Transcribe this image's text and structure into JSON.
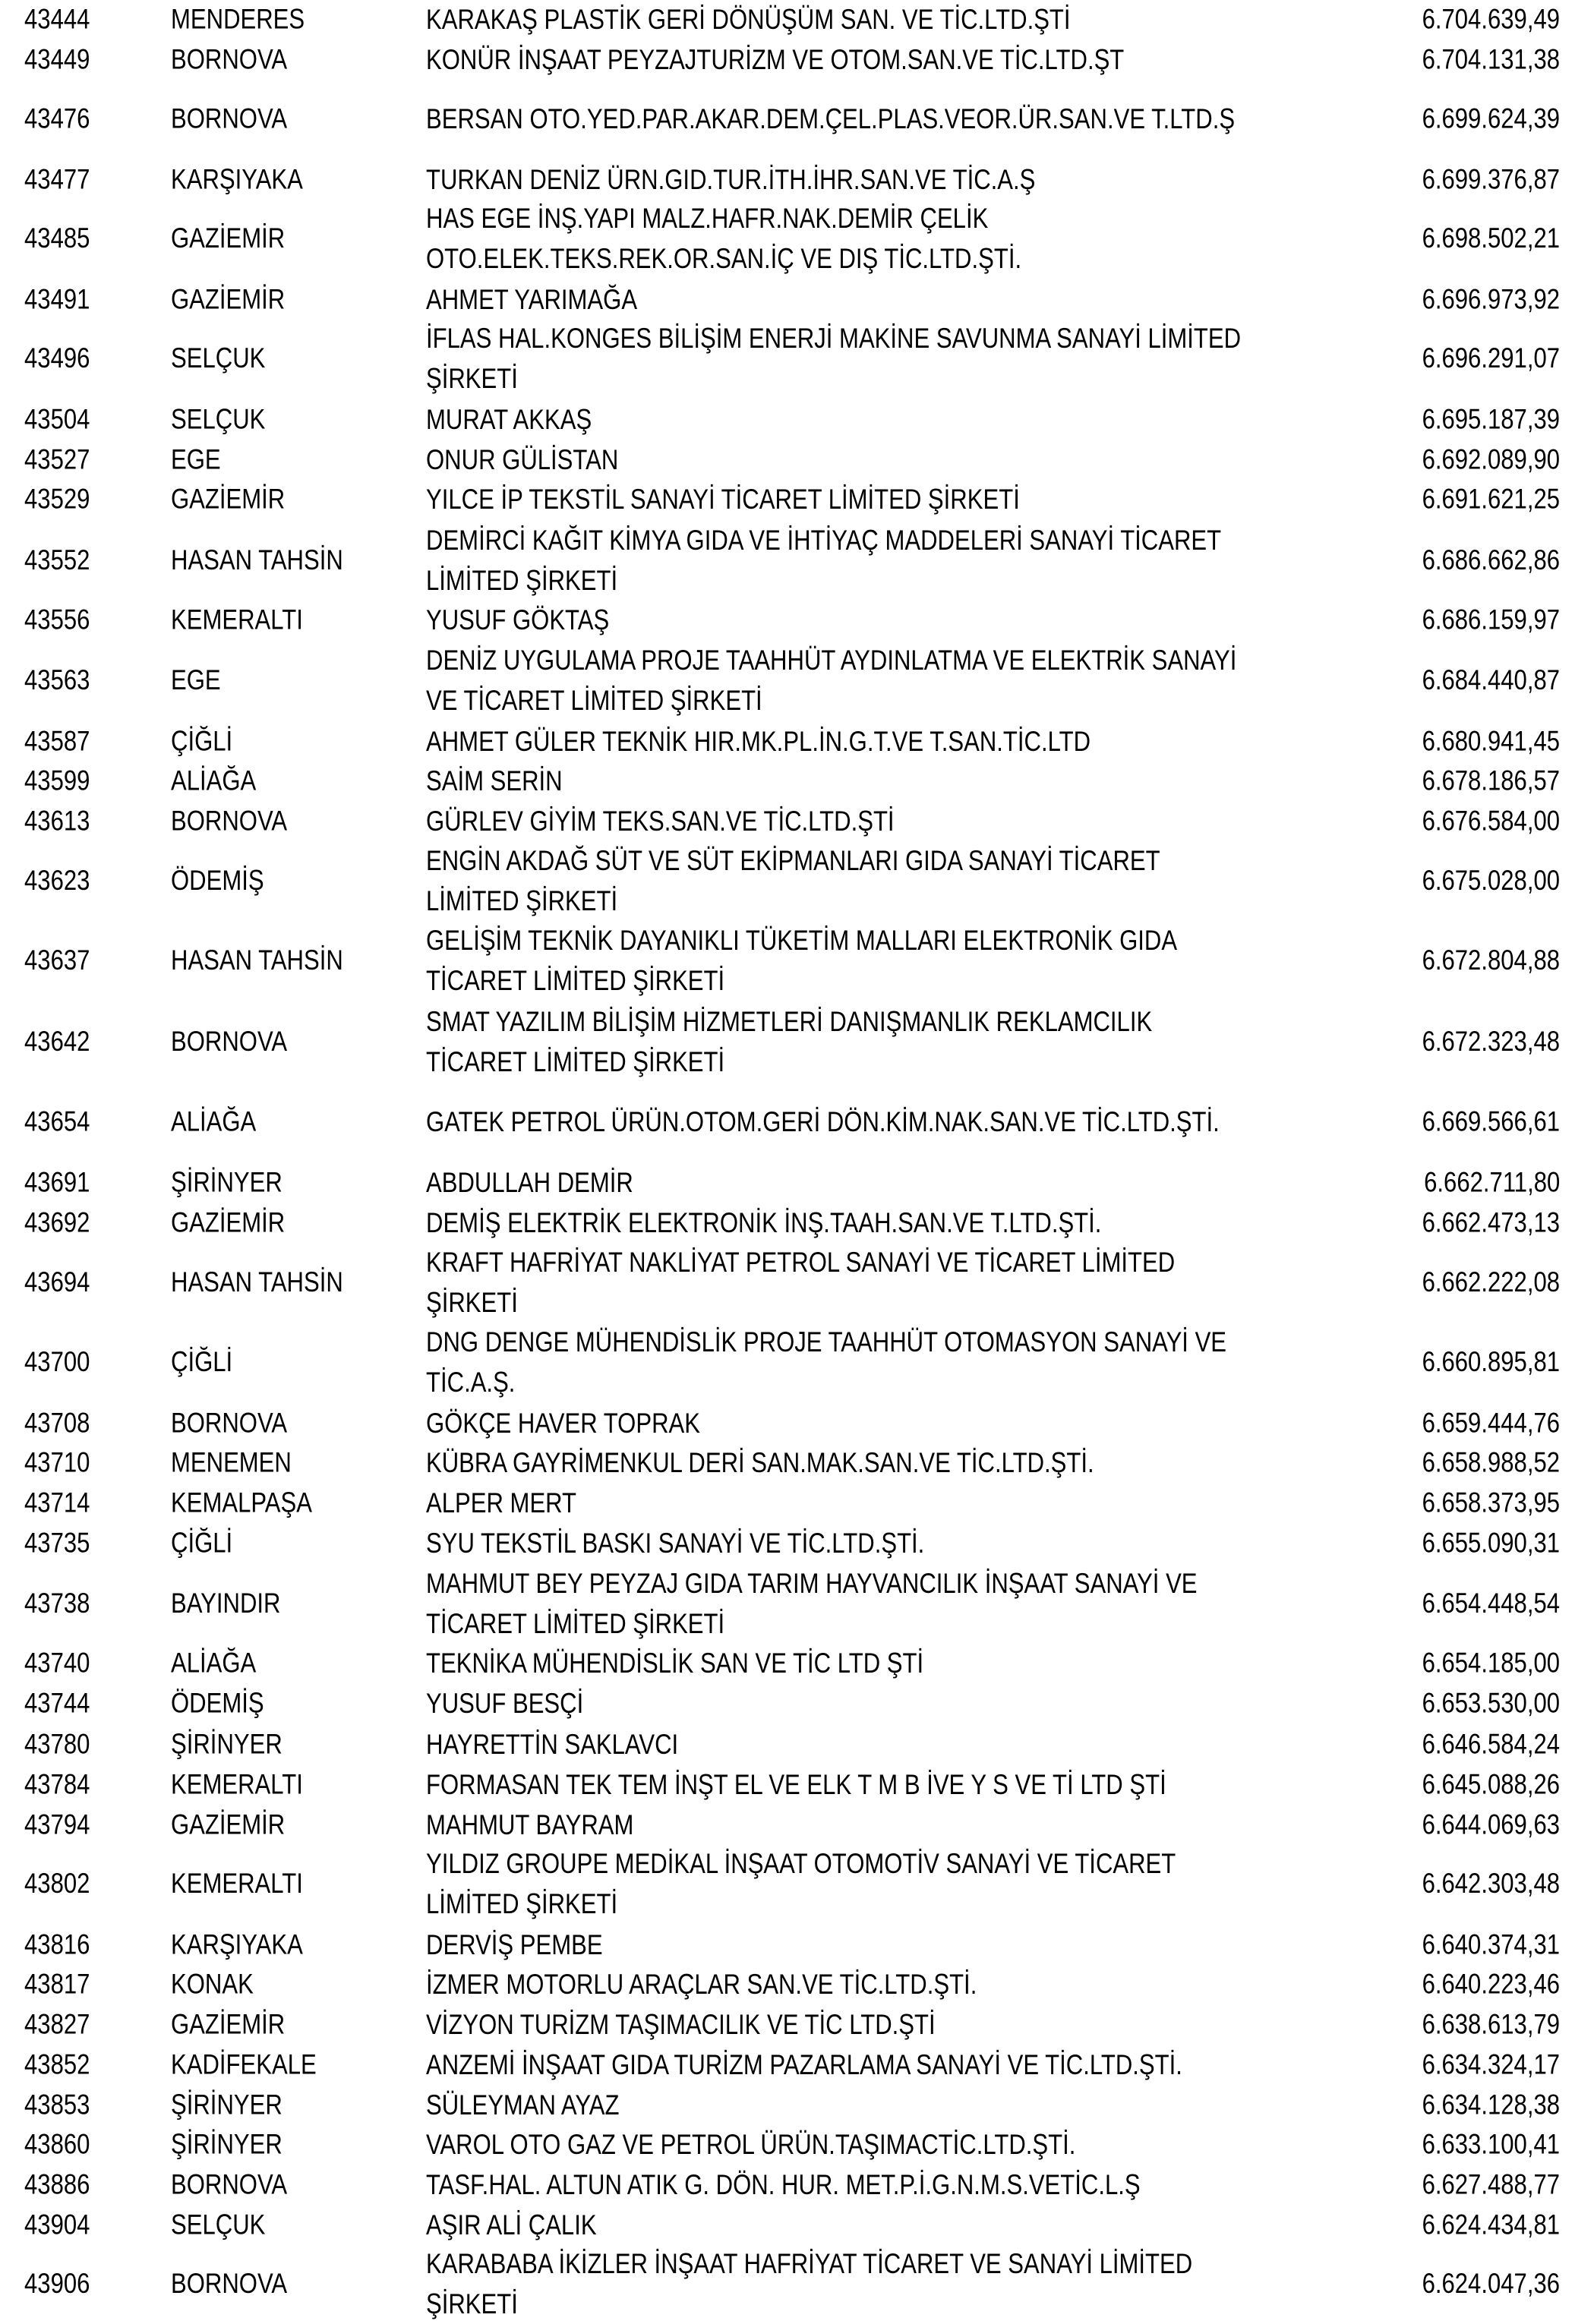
{
  "table": {
    "rows": [
      {
        "id": "43444",
        "district": "MENDERES",
        "name": [
          "KARAKAŞ PLASTİK GERİ DÖNÜŞÜM SAN. VE TİC.LTD.ŞTİ"
        ],
        "amount": "6.704.639,49"
      },
      {
        "id": "43449",
        "district": "BORNOVA",
        "name": [
          "KONÜR İNŞAAT PEYZAJTURİZM VE OTOM.SAN.VE TİC.LTD.ŞT"
        ],
        "amount": "6.704.131,38"
      },
      {
        "id": "43476",
        "district": "BORNOVA",
        "name": [
          "BERSAN OTO.YED.PAR.AKAR.DEM.ÇEL.PLAS.VEOR.ÜR.SAN.VE T.LTD.Ş"
        ],
        "amount": "6.699.624,39"
      },
      {
        "id": "43477",
        "district": "KARŞIYAKA",
        "name": [
          "TURKAN DENİZ ÜRN.GID.TUR.İTH.İHR.SAN.VE TİC.A.Ş"
        ],
        "amount": "6.699.376,87"
      },
      {
        "id": "43485",
        "district": "GAZİEMİR",
        "name": [
          "HAS EGE İNŞ.YAPI MALZ.HAFR.NAK.DEMİR ÇELİK",
          "OTO.ELEK.TEKS.REK.OR.SAN.İÇ VE DIŞ TİC.LTD.ŞTİ."
        ],
        "amount": "6.698.502,21"
      },
      {
        "id": "43491",
        "district": "GAZİEMİR",
        "name": [
          "AHMET YARIMAĞA"
        ],
        "amount": "6.696.973,92"
      },
      {
        "id": "43496",
        "district": "SELÇUK",
        "name": [
          "İFLAS HAL.KONGES BİLİŞİM ENERJİ MAKİNE SAVUNMA SANAYİ LİMİTED",
          "ŞİRKETİ"
        ],
        "amount": "6.696.291,07"
      },
      {
        "id": "43504",
        "district": "SELÇUK",
        "name": [
          "MURAT AKKAŞ"
        ],
        "amount": "6.695.187,39"
      },
      {
        "id": "43527",
        "district": "EGE",
        "name": [
          "ONUR GÜLİSTAN"
        ],
        "amount": "6.692.089,90"
      },
      {
        "id": "43529",
        "district": "GAZİEMİR",
        "name": [
          "YILCE İP TEKSTİL SANAYİ TİCARET LİMİTED ŞİRKETİ"
        ],
        "amount": "6.691.621,25"
      },
      {
        "id": "43552",
        "district": "HASAN TAHSİN",
        "name": [
          "DEMİRCİ KAĞIT KİMYA GIDA VE İHTİYAÇ MADDELERİ SANAYİ TİCARET",
          "LİMİTED ŞİRKETİ"
        ],
        "amount": "6.686.662,86"
      },
      {
        "id": "43556",
        "district": "KEMERALTI",
        "name": [
          "YUSUF GÖKTAŞ"
        ],
        "amount": "6.686.159,97"
      },
      {
        "id": "43563",
        "district": "EGE",
        "name": [
          "DENİZ UYGULAMA PROJE TAAHHÜT AYDINLATMA VE ELEKTRİK SANAYİ",
          "VE TİCARET LİMİTED ŞİRKETİ"
        ],
        "amount": "6.684.440,87"
      },
      {
        "id": "43587",
        "district": "ÇİĞLİ",
        "name": [
          "AHMET GÜLER TEKNİK HIR.MK.PL.İN.G.T.VE T.SAN.TİC.LTD"
        ],
        "amount": "6.680.941,45"
      },
      {
        "id": "43599",
        "district": "ALİAĞA",
        "name": [
          "SAİM SERİN"
        ],
        "amount": "6.678.186,57"
      },
      {
        "id": "43613",
        "district": "BORNOVA",
        "name": [
          "GÜRLEV GİYİM TEKS.SAN.VE TİC.LTD.ŞTİ"
        ],
        "amount": "6.676.584,00"
      },
      {
        "id": "43623",
        "district": "ÖDEMİŞ",
        "name": [
          "ENGİN AKDAĞ SÜT VE SÜT EKİPMANLARI GIDA SANAYİ TİCARET",
          "LİMİTED ŞİRKETİ"
        ],
        "amount": "6.675.028,00"
      },
      {
        "id": "43637",
        "district": "HASAN TAHSİN",
        "name": [
          "GELİŞİM TEKNİK DAYANIKLI TÜKETİM MALLARI ELEKTRONİK GIDA",
          "TİCARET LİMİTED ŞİRKETİ"
        ],
        "amount": "6.672.804,88"
      },
      {
        "id": "43642",
        "district": "BORNOVA",
        "name": [
          "SMAT YAZILIM BİLİŞİM HİZMETLERİ DANIŞMANLIK REKLAMCILIK",
          "TİCARET LİMİTED ŞİRKETİ"
        ],
        "amount": "6.672.323,48"
      },
      {
        "id": "43654",
        "district": "ALİAĞA",
        "name": [
          "GATEK PETROL ÜRÜN.OTOM.GERİ DÖN.KİM.NAK.SAN.VE TİC.LTD.ŞTİ."
        ],
        "amount": "6.669.566,61"
      },
      {
        "id": "43691",
        "district": "ŞİRİNYER",
        "name": [
          "ABDULLAH DEMİR"
        ],
        "amount": "6.662.711,80"
      },
      {
        "id": "43692",
        "district": "GAZİEMİR",
        "name": [
          "DEMİŞ ELEKTRİK ELEKTRONİK İNŞ.TAAH.SAN.VE T.LTD.ŞTİ."
        ],
        "amount": "6.662.473,13"
      },
      {
        "id": "43694",
        "district": "HASAN TAHSİN",
        "name": [
          "KRAFT HAFRİYAT NAKLİYAT PETROL SANAYİ VE TİCARET LİMİTED",
          "ŞİRKETİ"
        ],
        "amount": "6.662.222,08"
      },
      {
        "id": "43700",
        "district": "ÇİĞLİ",
        "name": [
          "DNG DENGE MÜHENDİSLİK PROJE TAAHHÜT OTOMASYON SANAYİ VE",
          "TİC.A.Ş."
        ],
        "amount": "6.660.895,81"
      },
      {
        "id": "43708",
        "district": "BORNOVA",
        "name": [
          "GÖKÇE HAVER TOPRAK"
        ],
        "amount": "6.659.444,76"
      },
      {
        "id": "43710",
        "district": "MENEMEN",
        "name": [
          "KÜBRA GAYRİMENKUL DERİ SAN.MAK.SAN.VE TİC.LTD.ŞTİ."
        ],
        "amount": "6.658.988,52"
      },
      {
        "id": "43714",
        "district": "KEMALPAŞA",
        "name": [
          "ALPER MERT"
        ],
        "amount": "6.658.373,95"
      },
      {
        "id": "43735",
        "district": "ÇİĞLİ",
        "name": [
          "SYU TEKSTİL BASKI SANAYİ VE TİC.LTD.ŞTİ."
        ],
        "amount": "6.655.090,31"
      },
      {
        "id": "43738",
        "district": "BAYINDIR",
        "name": [
          "MAHMUT BEY PEYZAJ GIDA TARIM HAYVANCILIK İNŞAAT SANAYİ VE",
          "TİCARET LİMİTED ŞİRKETİ"
        ],
        "amount": "6.654.448,54"
      },
      {
        "id": "43740",
        "district": "ALİAĞA",
        "name": [
          "TEKNİKA MÜHENDİSLİK SAN VE TİC LTD ŞTİ"
        ],
        "amount": "6.654.185,00"
      },
      {
        "id": "43744",
        "district": "ÖDEMİŞ",
        "name": [
          "YUSUF BESÇİ"
        ],
        "amount": "6.653.530,00"
      },
      {
        "id": "43780",
        "district": "ŞİRİNYER",
        "name": [
          "HAYRETTİN SAKLAVCI"
        ],
        "amount": "6.646.584,24"
      },
      {
        "id": "43784",
        "district": "KEMERALTI",
        "name": [
          "FORMASAN TEK TEM İNŞT EL VE ELK T M B İVE Y S VE Tİ LTD ŞTİ"
        ],
        "amount": "6.645.088,26"
      },
      {
        "id": "43794",
        "district": "GAZİEMİR",
        "name": [
          "MAHMUT BAYRAM"
        ],
        "amount": "6.644.069,63"
      },
      {
        "id": "43802",
        "district": "KEMERALTI",
        "name": [
          "YILDIZ GROUPE MEDİKAL İNŞAAT OTOMOTİV SANAYİ VE TİCARET",
          "LİMİTED ŞİRKETİ"
        ],
        "amount": "6.642.303,48"
      },
      {
        "id": "43816",
        "district": "KARŞIYAKA",
        "name": [
          "DERVİŞ PEMBE"
        ],
        "amount": "6.640.374,31"
      },
      {
        "id": "43817",
        "district": "KONAK",
        "name": [
          "İZMER MOTORLU ARAÇLAR SAN.VE TİC.LTD.ŞTİ."
        ],
        "amount": "6.640.223,46"
      },
      {
        "id": "43827",
        "district": "GAZİEMİR",
        "name": [
          "VİZYON TURİZM TAŞIMACILIK VE TİC LTD.ŞTİ"
        ],
        "amount": "6.638.613,79"
      },
      {
        "id": "43852",
        "district": "KADİFEKALE",
        "name": [
          "ANZEMİ İNŞAAT GIDA TURİZM PAZARLAMA SANAYİ VE TİC.LTD.ŞTİ."
        ],
        "amount": "6.634.324,17"
      },
      {
        "id": "43853",
        "district": "ŞİRİNYER",
        "name": [
          "SÜLEYMAN AYAZ"
        ],
        "amount": "6.634.128,38"
      },
      {
        "id": "43860",
        "district": "ŞİRİNYER",
        "name": [
          "VAROL OTO GAZ VE PETROL ÜRÜN.TAŞIMACTİC.LTD.ŞTİ."
        ],
        "amount": "6.633.100,41"
      },
      {
        "id": "43886",
        "district": "BORNOVA",
        "name": [
          "TASF.HAL. ALTUN ATIK G. DÖN. HUR. MET.P.İ.G.N.M.S.VETİC.L.Ş"
        ],
        "amount": "6.627.488,77"
      },
      {
        "id": "43904",
        "district": "SELÇUK",
        "name": [
          "AŞIR ALİ ÇALIK"
        ],
        "amount": "6.624.434,81"
      },
      {
        "id": "43906",
        "district": "BORNOVA",
        "name": [
          "KARABABA İKİZLER İNŞAAT HAFRİYAT TİCARET VE SANAYİ LİMİTED",
          "ŞİRKETİ"
        ],
        "amount": "6.624.047,36"
      }
    ]
  }
}
